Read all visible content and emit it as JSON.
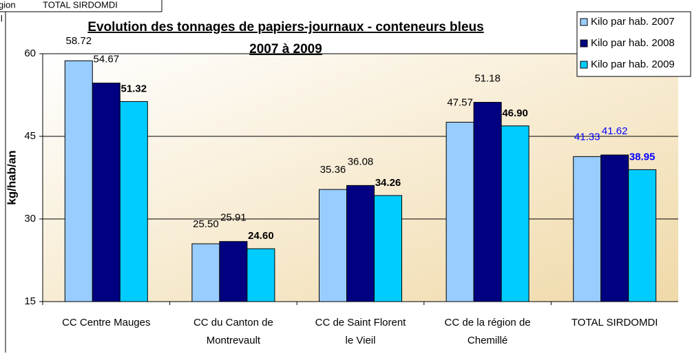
{
  "spreadsheet_fragments": [
    "gion",
    "TOTAL SIRDOMDI",
    "il"
  ],
  "chart_data": {
    "type": "bar",
    "title": "Evolution des tonnages de papiers-journaux - conteneurs bleus",
    "subtitle": "2007 à 2009",
    "y_label": "kg/hab/an",
    "categories": [
      [
        "CC Centre Mauges"
      ],
      [
        "CC du Canton de",
        "Montrevault"
      ],
      [
        "CC de Saint Florent",
        "le Vieil"
      ],
      [
        "CC de la région de",
        "Chemillé"
      ],
      [
        "TOTAL SIRDOMDI"
      ]
    ],
    "series": [
      {
        "name": "Kilo par hab. 2007",
        "color": "#99ccff",
        "values": [
          58.72,
          25.5,
          35.36,
          47.57,
          41.33
        ],
        "value_labels": [
          "58.72",
          "25.50",
          "35.36",
          "47.57",
          "41.33"
        ],
        "label_bold": false
      },
      {
        "name": "Kilo par hab. 2008",
        "color": "#000080",
        "values": [
          54.67,
          25.91,
          36.08,
          51.18,
          41.62
        ],
        "value_labels": [
          "54.67",
          "25.91",
          "36.08",
          "51.18",
          "41.62"
        ],
        "label_bold": false
      },
      {
        "name": "Kilo par hab. 2009",
        "color": "#00ccff",
        "values": [
          51.32,
          24.6,
          34.26,
          46.9,
          38.95
        ],
        "value_labels": [
          "51.32",
          "24.60",
          "34.26",
          "46.90",
          "38.95"
        ],
        "label_bold": true
      }
    ],
    "last_category_label_color": "#0000ff",
    "ylim": [
      15,
      60
    ],
    "yticks": [
      15,
      30,
      45,
      60
    ],
    "grid": true,
    "legend": "top-right"
  }
}
